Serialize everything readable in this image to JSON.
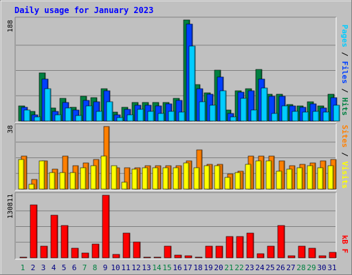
{
  "title": "Daily usage for January 2023",
  "colors": {
    "background": "#c0c0c0",
    "title": "#0000ff",
    "pages": "#00ccff",
    "files": "#0040ff",
    "hits": "#008040",
    "sites": "#ff8000",
    "visits": "#ffff00",
    "kbytes": "#ff0000",
    "weekend_day_label": "#008040",
    "weekday_label": "#000080"
  },
  "chart_data": [
    {
      "type": "bar",
      "name": "traffic-counts",
      "ymax": 188,
      "ymax_label": "188",
      "legend": [
        "Pages",
        "Files",
        "Hits"
      ],
      "categories": [
        "1",
        "2",
        "3",
        "4",
        "5",
        "6",
        "7",
        "8",
        "9",
        "10",
        "11",
        "12",
        "13",
        "14",
        "15",
        "16",
        "17",
        "18",
        "19",
        "20",
        "21",
        "22",
        "23",
        "24",
        "25",
        "26",
        "27",
        "28",
        "29",
        "30",
        "31"
      ],
      "series": [
        {
          "name": "Hits",
          "color_key": "hits",
          "values": [
            28,
            18,
            90,
            24,
            42,
            25,
            46,
            44,
            60,
            16,
            26,
            34,
            34,
            34,
            34,
            42,
            188,
            68,
            52,
            94,
            20,
            56,
            60,
            96,
            50,
            50,
            31,
            28,
            36,
            28,
            50
          ]
        },
        {
          "name": "Files",
          "color_key": "files",
          "values": [
            26,
            12,
            78,
            18,
            34,
            20,
            38,
            36,
            56,
            12,
            22,
            30,
            30,
            28,
            32,
            38,
            180,
            60,
            50,
            82,
            14,
            54,
            56,
            78,
            46,
            46,
            28,
            26,
            32,
            24,
            44
          ]
        },
        {
          "name": "Pages",
          "color_key": "pages",
          "values": [
            20,
            8,
            60,
            12,
            24,
            10,
            28,
            18,
            36,
            6,
            12,
            22,
            18,
            14,
            18,
            16,
            140,
            36,
            30,
            56,
            8,
            42,
            20,
            62,
            14,
            28,
            18,
            16,
            18,
            16,
            30
          ]
        }
      ]
    },
    {
      "type": "bar",
      "name": "visitors",
      "ymax": 38,
      "ymax_label": "38",
      "legend": [
        "Sites",
        "Visits"
      ],
      "categories": [
        "1",
        "2",
        "3",
        "4",
        "5",
        "6",
        "7",
        "8",
        "9",
        "10",
        "11",
        "12",
        "13",
        "14",
        "15",
        "16",
        "17",
        "18",
        "19",
        "20",
        "21",
        "22",
        "23",
        "24",
        "25",
        "26",
        "27",
        "28",
        "29",
        "30",
        "31"
      ],
      "series": [
        {
          "name": "Sites",
          "color_key": "sites",
          "values": [
            20,
            6,
            17,
            12,
            20,
            14,
            16,
            18,
            38,
            13,
            13,
            13,
            14,
            14,
            14,
            14,
            17,
            24,
            15,
            15,
            9,
            11,
            20,
            20,
            20,
            17,
            14,
            15,
            16,
            17,
            18
          ]
        },
        {
          "name": "Visits",
          "color_key": "visits",
          "values": [
            18,
            3,
            17,
            10,
            10,
            10,
            13,
            14,
            20,
            14,
            4,
            12,
            13,
            13,
            13,
            13,
            16,
            13,
            14,
            14,
            7,
            10,
            15,
            17,
            17,
            11,
            12,
            13,
            14,
            13,
            14
          ]
        }
      ]
    },
    {
      "type": "bar",
      "name": "kbytes",
      "ymax": 130811,
      "ymax_label": "130811",
      "legend": [
        "kB F"
      ],
      "categories": [
        "1",
        "2",
        "3",
        "4",
        "5",
        "6",
        "7",
        "8",
        "9",
        "10",
        "11",
        "12",
        "13",
        "14",
        "15",
        "16",
        "17",
        "18",
        "19",
        "20",
        "21",
        "22",
        "23",
        "24",
        "25",
        "26",
        "27",
        "28",
        "29",
        "30",
        "31"
      ],
      "series": [
        {
          "name": "kB F",
          "color_key": "kbytes",
          "values": [
            1000,
            110000,
            25000,
            89000,
            68000,
            20000,
            10000,
            29000,
            130811,
            7000,
            52000,
            33000,
            1500,
            1500,
            25000,
            6000,
            5000,
            1500,
            24000,
            25000,
            45000,
            45000,
            52000,
            8000,
            25000,
            67000,
            5000,
            24000,
            20000,
            5000,
            12000
          ]
        }
      ]
    }
  ],
  "x_day_labels": [
    {
      "label": "1",
      "weekend": true
    },
    {
      "label": "2",
      "weekend": false
    },
    {
      "label": "3",
      "weekend": false
    },
    {
      "label": "4",
      "weekend": false
    },
    {
      "label": "5",
      "weekend": false
    },
    {
      "label": "6",
      "weekend": false
    },
    {
      "label": "7",
      "weekend": true
    },
    {
      "label": "8",
      "weekend": true
    },
    {
      "label": "9",
      "weekend": false
    },
    {
      "label": "10",
      "weekend": false
    },
    {
      "label": "11",
      "weekend": false
    },
    {
      "label": "12",
      "weekend": false
    },
    {
      "label": "13",
      "weekend": false
    },
    {
      "label": "14",
      "weekend": true
    },
    {
      "label": "15",
      "weekend": true
    },
    {
      "label": "16",
      "weekend": false
    },
    {
      "label": "17",
      "weekend": false
    },
    {
      "label": "18",
      "weekend": false
    },
    {
      "label": "19",
      "weekend": false
    },
    {
      "label": "20",
      "weekend": false
    },
    {
      "label": "21",
      "weekend": true
    },
    {
      "label": "22",
      "weekend": true
    },
    {
      "label": "23",
      "weekend": false
    },
    {
      "label": "24",
      "weekend": false
    },
    {
      "label": "25",
      "weekend": false
    },
    {
      "label": "26",
      "weekend": false
    },
    {
      "label": "27",
      "weekend": false
    },
    {
      "label": "28",
      "weekend": true
    },
    {
      "label": "29",
      "weekend": true
    },
    {
      "label": "30",
      "weekend": false
    },
    {
      "label": "31",
      "weekend": false
    }
  ]
}
